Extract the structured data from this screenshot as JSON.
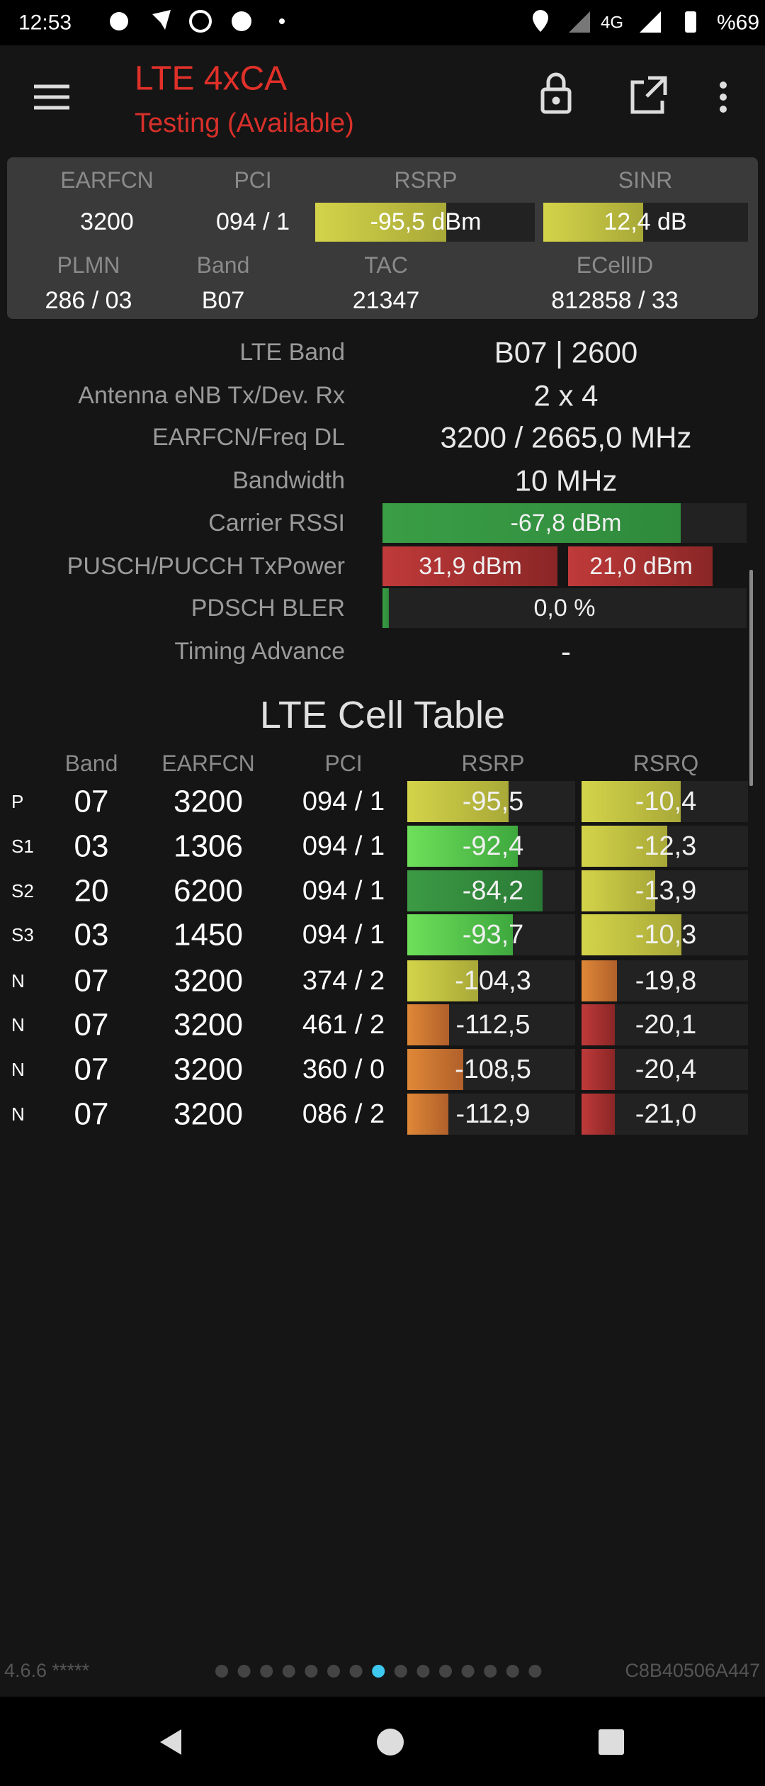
{
  "status_bar": {
    "time": "12:53",
    "network": "4G",
    "battery": "%69"
  },
  "app_bar": {
    "title": "LTE 4xCA",
    "subtitle": "Testing (Available)"
  },
  "summary": {
    "headers": [
      "EARFCN",
      "PCI",
      "RSRP",
      "SINR"
    ],
    "values": [
      "3200",
      "094 / 1",
      "-95,5 dBm",
      "12,4 dB"
    ],
    "headers2": [
      "PLMN",
      "Band",
      "TAC",
      "ECellID"
    ],
    "values2": [
      "286 / 03",
      "B07",
      "21347",
      "812858 / 33"
    ]
  },
  "details": [
    {
      "label": "LTE Band",
      "values": [
        "B07 | 2600"
      ]
    },
    {
      "label": "Antenna eNB Tx/Dev. Rx",
      "values": [
        "2 x 4"
      ]
    },
    {
      "label": "EARFCN/Freq DL",
      "values": [
        "3200 / 2665,0 MHz"
      ]
    },
    {
      "label": "Bandwidth",
      "values": [
        "10 MHz"
      ]
    },
    {
      "label": "Carrier RSSI",
      "values": [
        "-67,8 dBm"
      ]
    },
    {
      "label": "PUSCH/PUCCH TxPower",
      "values": [
        "31,9 dBm",
        "21,0 dBm"
      ]
    },
    {
      "label": "PDSCH BLER",
      "values": [
        "0,0 %"
      ]
    },
    {
      "label": "Timing Advance",
      "values": [
        "-"
      ]
    }
  ],
  "cell_table": {
    "title": "LTE Cell Table",
    "columns": [
      "Band",
      "EARFCN",
      "PCI",
      "RSRP",
      "RSRQ"
    ],
    "rows": [
      [
        "P",
        "07",
        "3200",
        "094 / 1",
        "-95,5",
        "-10,4"
      ],
      [
        "S1",
        "03",
        "1306",
        "094 / 1",
        "-92,4",
        "-12,3"
      ],
      [
        "S2",
        "20",
        "6200",
        "094 / 1",
        "-84,2",
        "-13,9"
      ],
      [
        "S3",
        "03",
        "1450",
        "094 / 1",
        "-93,7",
        "-10,3"
      ],
      [
        "N",
        "07",
        "3200",
        "374 / 2",
        "-104,3",
        "-19,8"
      ],
      [
        "N",
        "07",
        "3200",
        "461 / 2",
        "-112,5",
        "-20,1"
      ],
      [
        "N",
        "07",
        "3200",
        "360 / 0",
        "-108,5",
        "-20,4"
      ],
      [
        "N",
        "07",
        "3200",
        "086 / 2",
        "-112,9",
        "-21,0"
      ]
    ]
  },
  "footer": {
    "version": "4.6.6 *****",
    "cell_id": "C8B40506A447"
  }
}
